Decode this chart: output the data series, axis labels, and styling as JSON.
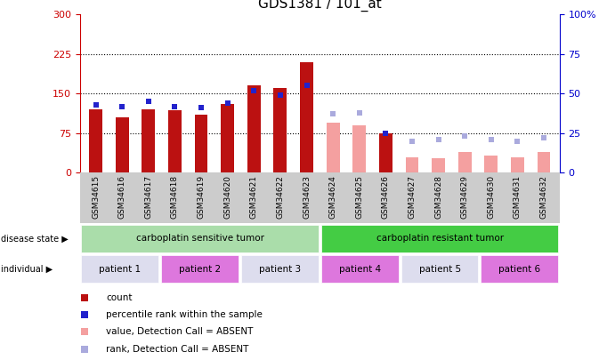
{
  "title": "GDS1381 / 101_at",
  "samples": [
    "GSM34615",
    "GSM34616",
    "GSM34617",
    "GSM34618",
    "GSM34619",
    "GSM34620",
    "GSM34621",
    "GSM34622",
    "GSM34623",
    "GSM34624",
    "GSM34625",
    "GSM34626",
    "GSM34627",
    "GSM34628",
    "GSM34629",
    "GSM34630",
    "GSM34631",
    "GSM34632"
  ],
  "bar_values": [
    120,
    105,
    120,
    118,
    110,
    130,
    165,
    160,
    210,
    95,
    90,
    75,
    30,
    28,
    40,
    32,
    30,
    40
  ],
  "rank_values": [
    43,
    42,
    45,
    42,
    41,
    44,
    52,
    49,
    55,
    37,
    38,
    25,
    20,
    21,
    23,
    21,
    20,
    22
  ],
  "absent": [
    false,
    false,
    false,
    false,
    false,
    false,
    false,
    false,
    false,
    true,
    true,
    false,
    true,
    true,
    true,
    true,
    true,
    true
  ],
  "bar_color_present": "#bb1111",
  "bar_color_absent": "#f4a0a0",
  "rank_color_present": "#2222cc",
  "rank_color_absent": "#aaaadd",
  "left_ylim": [
    0,
    300
  ],
  "right_ylim": [
    0,
    100
  ],
  "left_yticks": [
    0,
    75,
    150,
    225,
    300
  ],
  "right_yticks": [
    0,
    25,
    50,
    75,
    100
  ],
  "right_yticklabels": [
    "0",
    "25",
    "50",
    "75",
    "100%"
  ],
  "left_tick_color": "#cc0000",
  "right_tick_color": "#0000cc",
  "disease_state_groups": [
    {
      "label": "carboplatin sensitive tumor",
      "start": 0,
      "end": 9,
      "color": "#aaddaa"
    },
    {
      "label": "carboplatin resistant tumor",
      "start": 9,
      "end": 18,
      "color": "#44cc44"
    }
  ],
  "individual_groups": [
    {
      "label": "patient 1",
      "start": 0,
      "end": 3,
      "color": "#ddddee"
    },
    {
      "label": "patient 2",
      "start": 3,
      "end": 6,
      "color": "#dd77dd"
    },
    {
      "label": "patient 3",
      "start": 6,
      "end": 9,
      "color": "#ddddee"
    },
    {
      "label": "patient 4",
      "start": 9,
      "end": 12,
      "color": "#dd77dd"
    },
    {
      "label": "patient 5",
      "start": 12,
      "end": 15,
      "color": "#ddddee"
    },
    {
      "label": "patient 6",
      "start": 15,
      "end": 18,
      "color": "#dd77dd"
    }
  ],
  "legend_items": [
    {
      "label": "count",
      "color": "#bb1111"
    },
    {
      "label": "percentile rank within the sample",
      "color": "#2222cc"
    },
    {
      "label": "value, Detection Call = ABSENT",
      "color": "#f4a0a0"
    },
    {
      "label": "rank, Detection Call = ABSENT",
      "color": "#aaaadd"
    }
  ],
  "bar_width": 0.5,
  "xtick_bg": "#cccccc"
}
